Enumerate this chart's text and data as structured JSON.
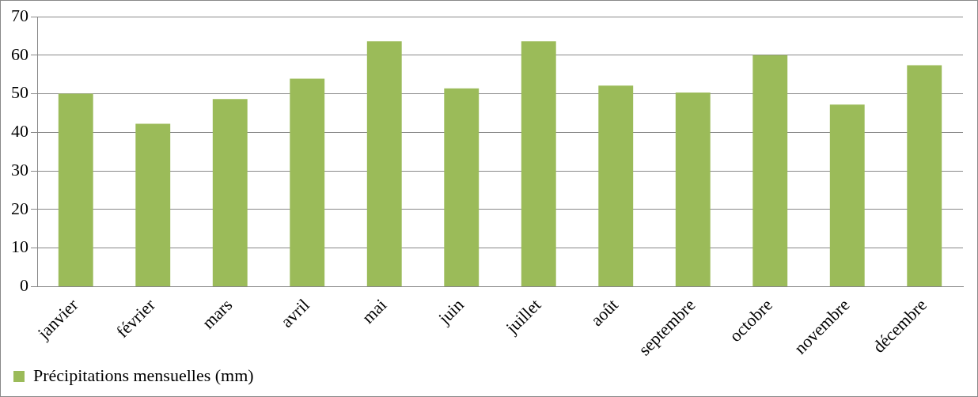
{
  "chart_data": {
    "type": "bar",
    "categories": [
      "janvier",
      "février",
      "mars",
      "avril",
      "mai",
      "juin",
      "juillet",
      "août",
      "septembre",
      "octobre",
      "novembre",
      "décembre"
    ],
    "series": [
      {
        "name": "Précipitations mensuelles (mm)",
        "color": "#9bbb59",
        "values": [
          50,
          42.2,
          48.6,
          53.9,
          63.6,
          51.4,
          63.6,
          52.1,
          50.3,
          60,
          47.2,
          57.4
        ]
      }
    ],
    "ylim": [
      0,
      70
    ],
    "yticks": [
      0,
      10,
      20,
      30,
      40,
      50,
      60,
      70
    ],
    "grid": "y",
    "legend": "bottom"
  }
}
